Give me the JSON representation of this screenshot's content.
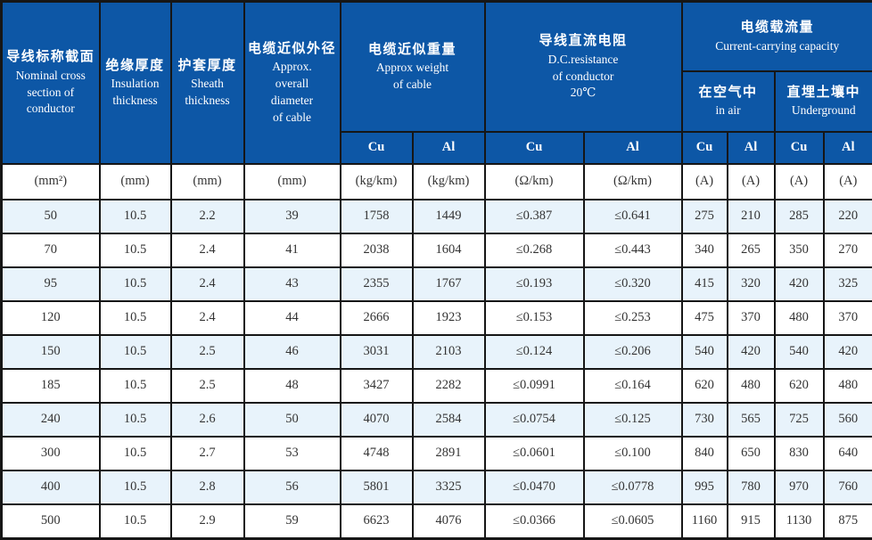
{
  "colors": {
    "header_bg": "#0d57a6",
    "header_text": "#ffffff",
    "row_bg": "#ffffff",
    "row_alt_bg": "#e8f3fb",
    "border": "#161616",
    "data_text": "#333333"
  },
  "table": {
    "header": {
      "nominal_cross_section": {
        "zh": "导线标称截面",
        "en": "Nominal cross\nsection of\nconductor"
      },
      "insulation_thickness": {
        "zh": "绝缘厚度",
        "en": "Insulation\nthickness"
      },
      "sheath_thickness": {
        "zh": "护套厚度",
        "en": "Sheath\nthickness"
      },
      "approx_overall_diameter": {
        "zh": "电缆近似外径",
        "en": "Approx.\noverall\ndiameter\nof cable"
      },
      "approx_weight": {
        "zh": "电缆近似重量",
        "en": "Approx weight\nof cable"
      },
      "dc_resistance": {
        "zh": "导线直流电阻",
        "en": "D.C.resistance\nof conductor\n20℃"
      },
      "current_carrying_capacity": {
        "zh": "电缆载流量",
        "en": "Current-carrying capacity"
      },
      "in_air": {
        "zh": "在空气中",
        "en": "in air"
      },
      "underground": {
        "zh": "直埋土壤中",
        "en": "Underground"
      }
    },
    "material_labels": [
      "Cu",
      "Al",
      "Cu",
      "Al",
      "Cu",
      "Al",
      "Cu",
      "Al"
    ],
    "units": [
      "(mm²)",
      "(mm)",
      "(mm)",
      "(mm)",
      "(kg/km)",
      "(kg/km)",
      "(Ω/km)",
      "(Ω/km)",
      "(A)",
      "(A)",
      "(A)",
      "(A)"
    ],
    "rows": [
      [
        "50",
        "10.5",
        "2.2",
        "39",
        "1758",
        "1449",
        "≤0.387",
        "≤0.641",
        "275",
        "210",
        "285",
        "220"
      ],
      [
        "70",
        "10.5",
        "2.4",
        "41",
        "2038",
        "1604",
        "≤0.268",
        "≤0.443",
        "340",
        "265",
        "350",
        "270"
      ],
      [
        "95",
        "10.5",
        "2.4",
        "43",
        "2355",
        "1767",
        "≤0.193",
        "≤0.320",
        "415",
        "320",
        "420",
        "325"
      ],
      [
        "120",
        "10.5",
        "2.4",
        "44",
        "2666",
        "1923",
        "≤0.153",
        "≤0.253",
        "475",
        "370",
        "480",
        "370"
      ],
      [
        "150",
        "10.5",
        "2.5",
        "46",
        "3031",
        "2103",
        "≤0.124",
        "≤0.206",
        "540",
        "420",
        "540",
        "420"
      ],
      [
        "185",
        "10.5",
        "2.5",
        "48",
        "3427",
        "2282",
        "≤0.0991",
        "≤0.164",
        "620",
        "480",
        "620",
        "480"
      ],
      [
        "240",
        "10.5",
        "2.6",
        "50",
        "4070",
        "2584",
        "≤0.0754",
        "≤0.125",
        "730",
        "565",
        "725",
        "560"
      ],
      [
        "300",
        "10.5",
        "2.7",
        "53",
        "4748",
        "2891",
        "≤0.0601",
        "≤0.100",
        "840",
        "650",
        "830",
        "640"
      ],
      [
        "400",
        "10.5",
        "2.8",
        "56",
        "5801",
        "3325",
        "≤0.0470",
        "≤0.0778",
        "995",
        "780",
        "970",
        "760"
      ],
      [
        "500",
        "10.5",
        "2.9",
        "59",
        "6623",
        "4076",
        "≤0.0366",
        "≤0.0605",
        "1160",
        "915",
        "1130",
        "875"
      ]
    ]
  }
}
